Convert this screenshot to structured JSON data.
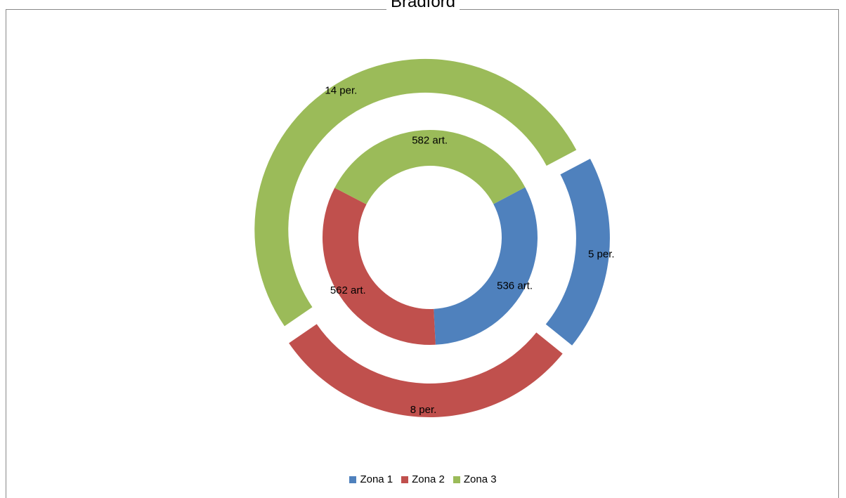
{
  "chart_data": {
    "type": "donut",
    "title": "Bradford",
    "legend_position": "bottom",
    "categories": [
      "Zona 1",
      "Zona 2",
      "Zona 3"
    ],
    "colors": [
      "#4F81BD",
      "#C0504D",
      "#9BBB59"
    ],
    "series": [
      {
        "ring": "inner",
        "values": [
          536,
          562,
          582
        ],
        "labels": [
          "536 art.",
          "562 art.",
          "582 art."
        ]
      },
      {
        "ring": "outer",
        "exploded": true,
        "values": [
          5,
          8,
          14
        ],
        "labels": [
          "5 per.",
          "8 per.",
          "14 per."
        ]
      }
    ]
  }
}
